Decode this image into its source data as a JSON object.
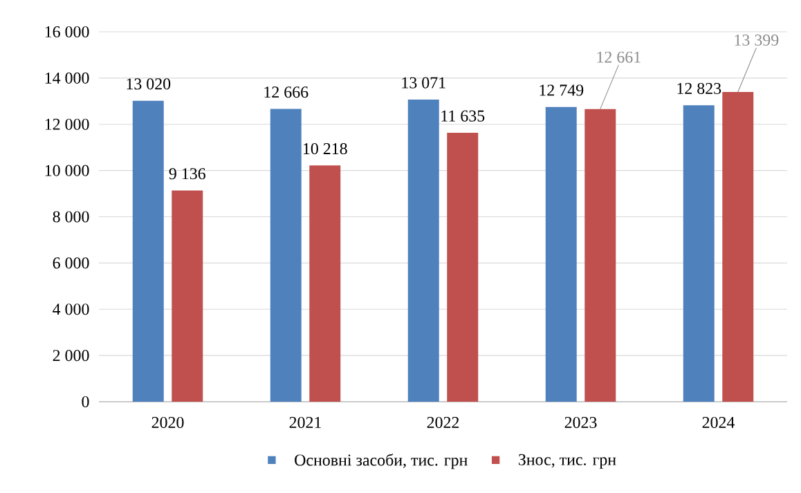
{
  "chart_data": {
    "type": "bar",
    "categories": [
      "2020",
      "2021",
      "2022",
      "2023",
      "2024"
    ],
    "series": [
      {
        "name": "Основні засоби, тис. грн",
        "color": "#4f81bd",
        "values": [
          13020,
          12666,
          13071,
          12749,
          12823
        ],
        "value_labels": [
          "13 020",
          "12 666",
          "13 071",
          "12 749",
          "12 823"
        ]
      },
      {
        "name": "Знос, тис. грн",
        "color": "#c0504d",
        "values": [
          9136,
          10218,
          11635,
          12661,
          13399
        ],
        "value_labels": [
          "9 136",
          "10 218",
          "11 635",
          "12 661",
          "13 399"
        ]
      }
    ],
    "ylim": [
      0,
      16000
    ],
    "yticks": [
      0,
      {
        "value": 2000,
        "label": "2 000"
      },
      {
        "value": 4000,
        "label": "4 000"
      },
      {
        "value": 6000,
        "label": "6 000"
      },
      {
        "value": 8000,
        "label": "8 000"
      },
      {
        "value": 10000,
        "label": "10 000"
      },
      {
        "value": 12000,
        "label": "12 000"
      },
      {
        "value": 14000,
        "label": "14 000"
      },
      {
        "value": 16000,
        "label": "16 000"
      }
    ],
    "grid": "y",
    "legend": "bottom"
  }
}
